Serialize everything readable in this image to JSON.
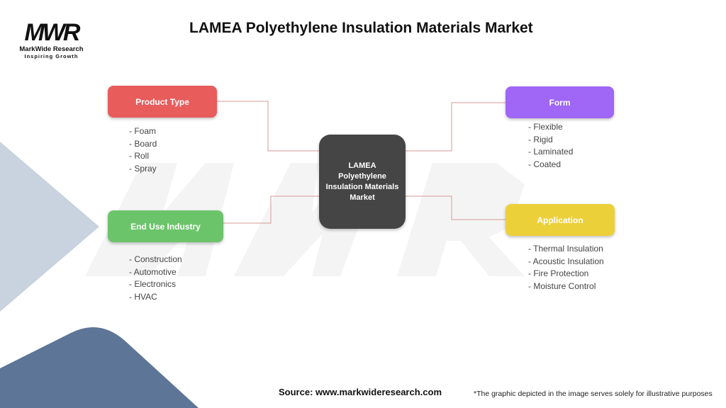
{
  "title": "LAMEA Polyethylene Insulation Materials Market",
  "logo": {
    "mark": "MWR",
    "name": "MarkWide Research",
    "tagline": "Inspiring Growth"
  },
  "center": "LAMEA Polyethylene Insulation Materials Market",
  "segments": [
    {
      "label": "Product Type",
      "color": "#e85c5c",
      "items": [
        "- Foam",
        "- Board",
        "- Roll",
        "- Spray"
      ]
    },
    {
      "label": "End Use Industry",
      "color": "#6cc46a",
      "items": [
        "- Construction",
        "- Automotive",
        "- Electronics",
        "- HVAC"
      ]
    },
    {
      "label": "Form",
      "color": "#a066f5",
      "items": [
        "- Flexible",
        "- Rigid",
        "- Laminated",
        "- Coated"
      ]
    },
    {
      "label": "Application",
      "color": "#ecd03a",
      "items": [
        "- Thermal Insulation",
        "- Acoustic Insulation",
        "- Fire Protection",
        "- Moisture Control"
      ]
    }
  ],
  "source": "Source: www.markwideresearch.com",
  "note": "*The graphic depicted in the image serves solely for illustrative purposes"
}
